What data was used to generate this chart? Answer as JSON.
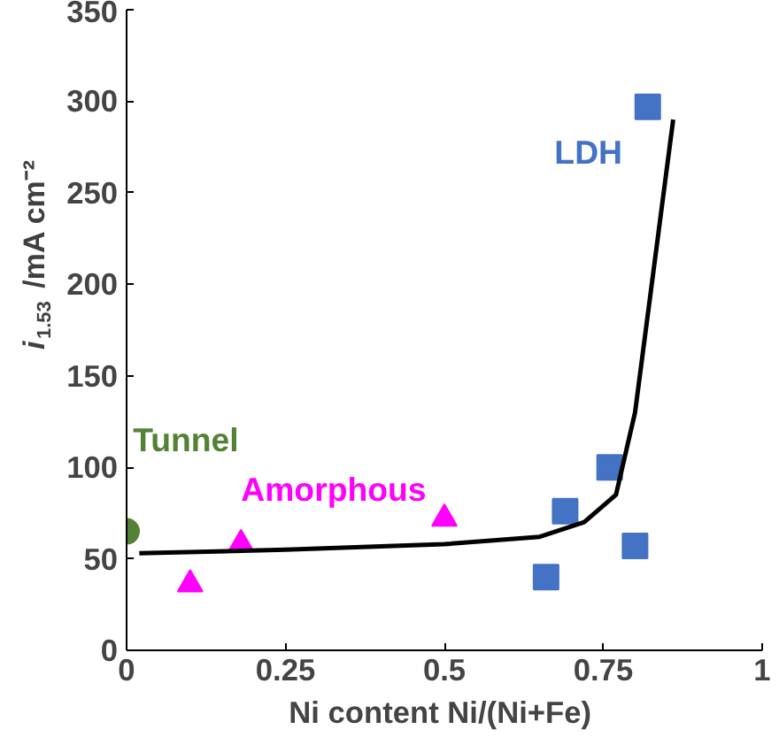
{
  "chart_data": {
    "type": "scatter",
    "xlabel": "Ni content  Ni/(Ni+Fe)",
    "ylabel": "i$_{1.53}$ /mA cm⁻²",
    "xlim": [
      0,
      1
    ],
    "xticks": [
      0,
      0.25,
      0.5,
      0.75,
      1
    ],
    "ylim": [
      0,
      350
    ],
    "yticks": [
      0,
      50,
      100,
      150,
      200,
      250,
      300,
      350
    ],
    "grid": false,
    "legend": false,
    "series": [
      {
        "name": "Tunnel",
        "color": "#548235",
        "marker": "circle",
        "x": [
          0
        ],
        "values": [
          65
        ]
      },
      {
        "name": "Amorphous",
        "color": "#ff00ff",
        "marker": "triangle",
        "x": [
          0.1,
          0.18,
          0.5
        ],
        "values": [
          36,
          58,
          72
        ]
      },
      {
        "name": "LDH",
        "color": "#4472c4",
        "marker": "square",
        "x": [
          0.66,
          0.69,
          0.76,
          0.8,
          0.82
        ],
        "values": [
          40,
          76,
          100,
          57,
          297
        ]
      },
      {
        "type": "line",
        "color": "#000000",
        "marker": "none",
        "x": [
          0.02,
          0.25,
          0.5,
          0.65,
          0.72,
          0.77,
          0.8,
          0.83,
          0.86
        ],
        "values": [
          53,
          55,
          58,
          62,
          70,
          85,
          130,
          210,
          290
        ]
      }
    ]
  }
}
